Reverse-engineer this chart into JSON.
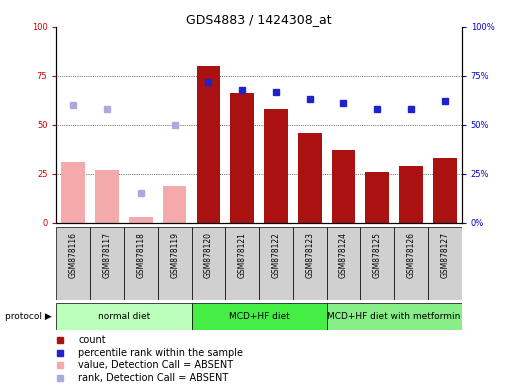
{
  "title": "GDS4883 / 1424308_at",
  "samples": [
    "GSM878116",
    "GSM878117",
    "GSM878118",
    "GSM878119",
    "GSM878120",
    "GSM878121",
    "GSM878122",
    "GSM878123",
    "GSM878124",
    "GSM878125",
    "GSM878126",
    "GSM878127"
  ],
  "count_values": [
    31,
    27,
    3,
    19,
    80,
    66,
    58,
    46,
    37,
    26,
    29,
    33
  ],
  "count_absent": [
    true,
    true,
    true,
    true,
    false,
    false,
    false,
    false,
    false,
    false,
    false,
    false
  ],
  "percentile_values": [
    60,
    58,
    15,
    50,
    72,
    68,
    67,
    63,
    61,
    58,
    58,
    62
  ],
  "percentile_absent": [
    true,
    true,
    true,
    true,
    false,
    false,
    false,
    false,
    false,
    false,
    false,
    false
  ],
  "color_bar_present": "#aa1111",
  "color_bar_absent": "#f4aaaa",
  "color_dot_present": "#2222cc",
  "color_dot_absent": "#aaaadd",
  "ylim_left": [
    0,
    100
  ],
  "ylim_right": [
    0,
    100
  ],
  "yticks": [
    0,
    25,
    50,
    75,
    100
  ],
  "ytick_labels_left": [
    "0",
    "25",
    "50",
    "75",
    "100"
  ],
  "ytick_labels_right": [
    "0%",
    "25%",
    "50%",
    "75%",
    "100%"
  ],
  "protocol_groups": [
    {
      "label": "normal diet",
      "start": 0,
      "end": 3,
      "color": "#bbffbb"
    },
    {
      "label": "MCD+HF diet",
      "start": 4,
      "end": 7,
      "color": "#44ee44"
    },
    {
      "label": "MCD+HF diet with metformin",
      "start": 8,
      "end": 11,
      "color": "#88ee88"
    }
  ],
  "legend_items": [
    {
      "label": "count",
      "color": "#aa1111"
    },
    {
      "label": "percentile rank within the sample",
      "color": "#2222cc"
    },
    {
      "label": "value, Detection Call = ABSENT",
      "color": "#f4aaaa"
    },
    {
      "label": "rank, Detection Call = ABSENT",
      "color": "#aaaadd"
    }
  ],
  "protocol_label": "protocol",
  "title_fontsize": 9,
  "tick_fontsize": 6,
  "label_fontsize": 5.5,
  "legend_fontsize": 7,
  "proto_fontsize": 6.5
}
